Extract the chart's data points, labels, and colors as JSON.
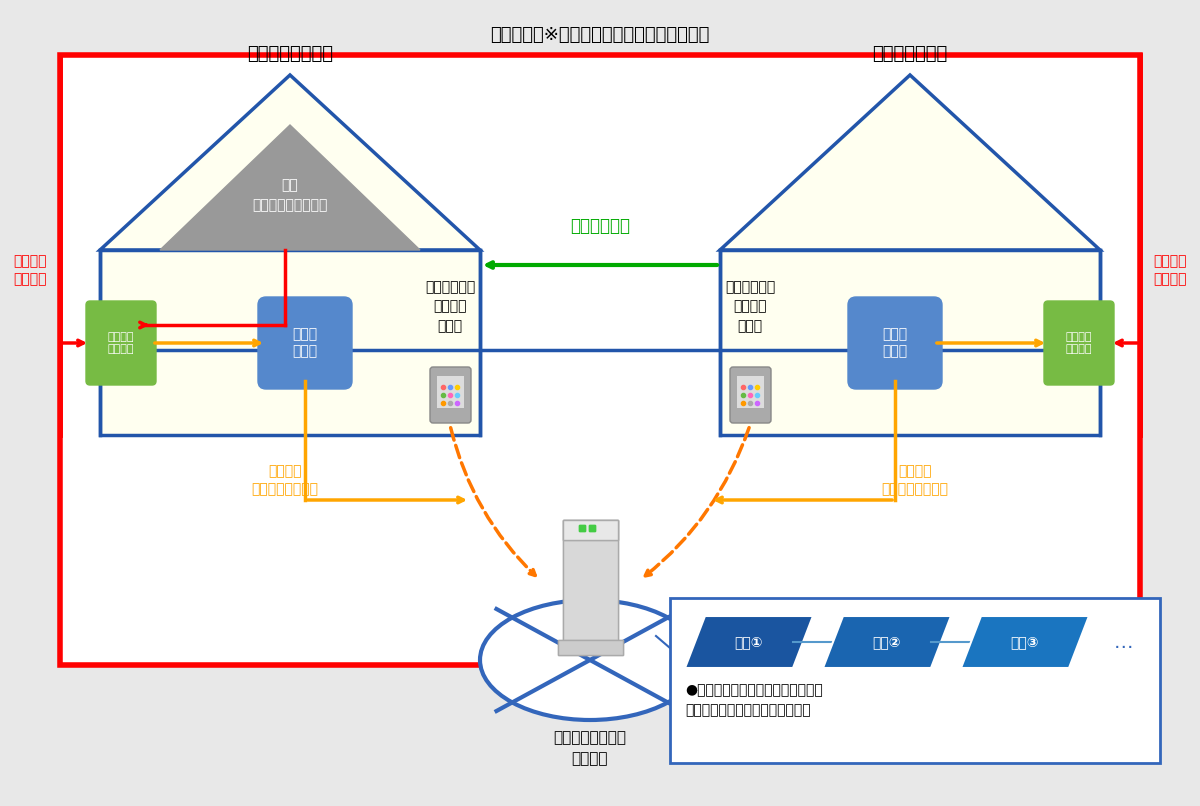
{
  "bg_color": "#e8e8e8",
  "title_text": "電力系統　※実証研究では直接接続している",
  "prosumer_label": "プロシューマー宅",
  "consumer_label": "電力の消費者宅",
  "pv_label": "ＰＶ\n（太陽光発電設備）",
  "smart_meter_label": "スマート\nメーター",
  "gateway_label": "ゲート\nウェイ",
  "sell_order_label": "（売り注文）\n個別指定\n幅指定",
  "buy_order_label": "（買い注文）\n個別指定\n幅指定",
  "purchase_price_label": "購入電気料金",
  "trade_info_left_label": "取引情報\n（電力量・料金）",
  "trade_info_right_label": "取引情報\n（電力量・料金）",
  "surplus_left_label": "余剰電力\n（販売）",
  "surplus_right_label": "余剰電力\n（購入）",
  "blockchain_label": "ブロックチェーン\nサーバー",
  "trade_block1": "取引①",
  "trade_block2": "取引②",
  "trade_block3": "取引③",
  "block_note": "●毎回の取引データ　（３０分）が\n　ブロックとしてサーバーに蓄積"
}
